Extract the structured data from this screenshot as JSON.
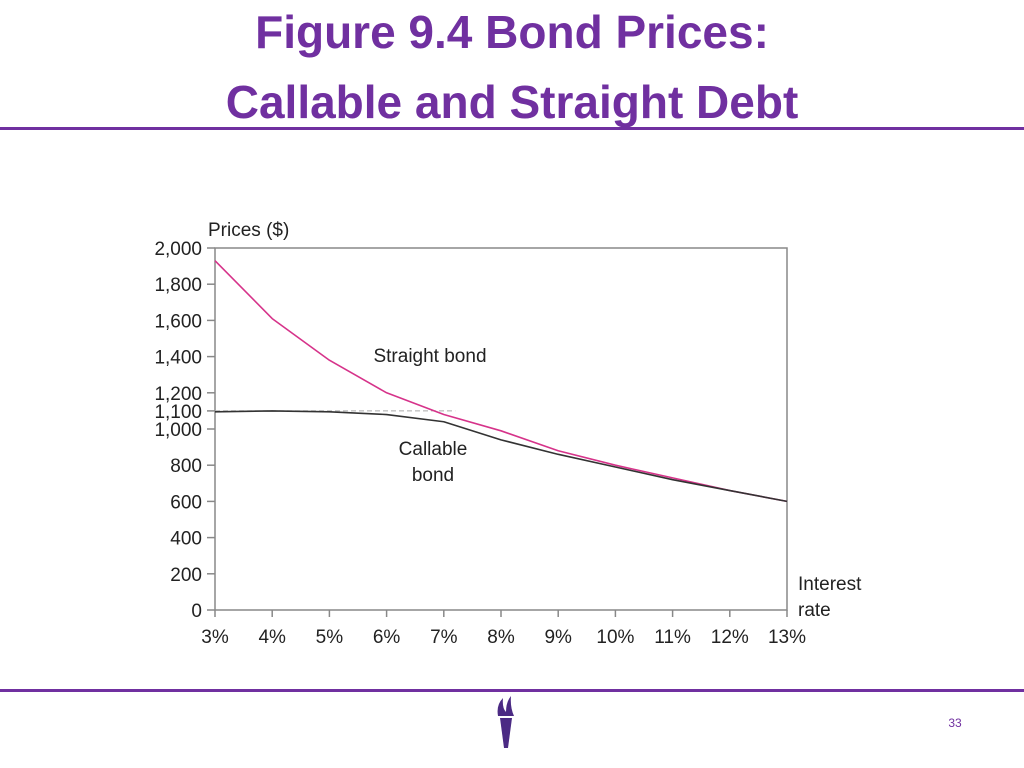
{
  "chart_data": {
    "type": "line",
    "title": [
      "Figure 9.4 Bond Prices:",
      "Callable and Straight Debt"
    ],
    "y_label": "Prices ($)",
    "x_label": "Interest rate",
    "x": [
      3,
      4,
      5,
      6,
      7,
      8,
      9,
      10,
      11,
      12,
      13
    ],
    "series": [
      {
        "name": "Straight bond",
        "color": "#d6338a",
        "values": [
          1930,
          1610,
          1380,
          1200,
          1080,
          990,
          880,
          800,
          730,
          660,
          600
        ]
      },
      {
        "name": "Callable bond",
        "color": "#333333",
        "values": [
          1095,
          1100,
          1095,
          1080,
          1040,
          940,
          860,
          790,
          720,
          660,
          600
        ]
      }
    ],
    "xlim": [
      3,
      13
    ],
    "xticks": [
      {
        "value": 3,
        "label": "3%"
      },
      {
        "value": 4,
        "label": "4%"
      },
      {
        "value": 5,
        "label": "5%"
      },
      {
        "value": 6,
        "label": "6%"
      },
      {
        "value": 7,
        "label": "7%"
      },
      {
        "value": 8,
        "label": "8%"
      },
      {
        "value": 9,
        "label": "9%"
      },
      {
        "value": 10,
        "label": "10%"
      },
      {
        "value": 11,
        "label": "11%"
      },
      {
        "value": 12,
        "label": "12%"
      },
      {
        "value": 13,
        "label": "13%"
      }
    ],
    "ylim": [
      0,
      2000
    ],
    "yticks": [
      0,
      200,
      400,
      600,
      800,
      {
        "value": 1000,
        "label": "1,000"
      },
      {
        "value": 1100,
        "label": "1,100"
      },
      {
        "value": 1200,
        "label": "1,200"
      },
      {
        "value": 1400,
        "label": "1,400"
      },
      {
        "value": 1600,
        "label": "1,600"
      },
      {
        "value": 1800,
        "label": "1,800"
      },
      {
        "value": 2000,
        "label": "2,000"
      }
    ],
    "page_number": "33"
  }
}
